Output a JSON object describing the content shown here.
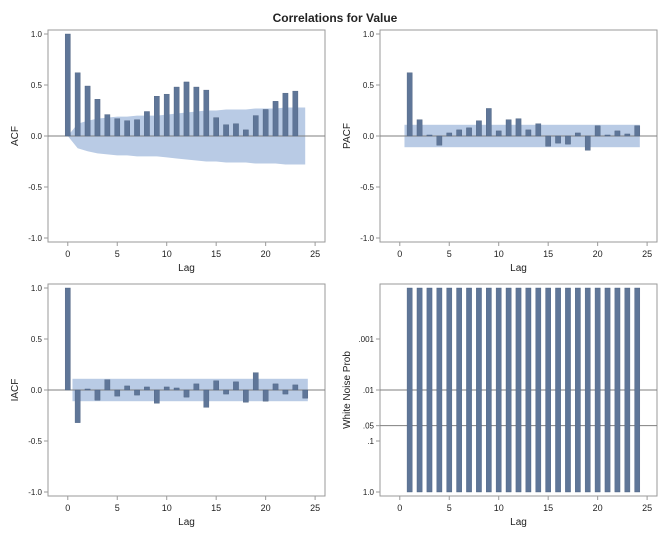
{
  "title": "Correlations for Value",
  "colors": {
    "bar": "#5f7698",
    "band": "#b9cbe5",
    "frame": "#9a9a9a",
    "zero": "#7f7f7f",
    "text": "#222222"
  },
  "chart_data": [
    {
      "type": "bar",
      "ylabel": "ACF",
      "xlabel": "Lag",
      "xlim": [
        -2,
        26
      ],
      "xticks": [
        "0",
        "5",
        "10",
        "15",
        "20",
        "25"
      ],
      "ylim": [
        -1.0,
        1.0
      ],
      "yticks": [
        "-1.0",
        "-0.5",
        "0.0",
        "0.5",
        "1.0"
      ],
      "band": "funnel",
      "lags": [
        0,
        1,
        2,
        3,
        4,
        5,
        6,
        7,
        8,
        9,
        10,
        11,
        12,
        13,
        14,
        15,
        16,
        17,
        18,
        19,
        20,
        21,
        22,
        23,
        24
      ],
      "values": [
        1.0,
        0.62,
        0.49,
        0.36,
        0.21,
        0.17,
        0.15,
        0.16,
        0.24,
        0.39,
        0.41,
        0.48,
        0.53,
        0.48,
        0.45,
        0.18,
        0.11,
        0.12,
        0.06,
        0.2,
        0.26,
        0.34,
        0.42,
        0.44,
        0.0
      ],
      "band_upper": [
        0.0,
        0.12,
        0.15,
        0.17,
        0.18,
        0.19,
        0.19,
        0.2,
        0.2,
        0.2,
        0.21,
        0.22,
        0.23,
        0.24,
        0.25,
        0.25,
        0.26,
        0.26,
        0.26,
        0.27,
        0.27,
        0.27,
        0.28,
        0.28,
        0.28
      ]
    },
    {
      "type": "bar",
      "ylabel": "PACF",
      "xlabel": "Lag",
      "xlim": [
        -2,
        26
      ],
      "xticks": [
        "0",
        "5",
        "10",
        "15",
        "20",
        "25"
      ],
      "ylim": [
        -1.0,
        1.0
      ],
      "yticks": [
        "-1.0",
        "-0.5",
        "0.0",
        "0.5",
        "1.0"
      ],
      "band": "constant",
      "band_level": 0.11,
      "lags": [
        1,
        2,
        3,
        4,
        5,
        6,
        7,
        8,
        9,
        10,
        11,
        12,
        13,
        14,
        15,
        16,
        17,
        18,
        19,
        20,
        21,
        22,
        23,
        24
      ],
      "values": [
        0.62,
        0.16,
        0.01,
        -0.09,
        0.03,
        0.06,
        0.08,
        0.15,
        0.27,
        0.05,
        0.16,
        0.17,
        0.06,
        0.12,
        -0.1,
        -0.07,
        -0.08,
        0.03,
        -0.14,
        0.1,
        0.01,
        0.05,
        0.02,
        0.1
      ]
    },
    {
      "type": "bar",
      "ylabel": "IACF",
      "xlabel": "Lag",
      "xlim": [
        -2,
        26
      ],
      "xticks": [
        "0",
        "5",
        "10",
        "15",
        "20",
        "25"
      ],
      "ylim": [
        -1.0,
        1.0
      ],
      "yticks": [
        "-1.0",
        "-0.5",
        "0.0",
        "0.5",
        "1.0"
      ],
      "band": "constant",
      "band_level": 0.11,
      "lags": [
        0,
        1,
        2,
        3,
        4,
        5,
        6,
        7,
        8,
        9,
        10,
        11,
        12,
        13,
        14,
        15,
        16,
        17,
        18,
        19,
        20,
        21,
        22,
        23,
        24
      ],
      "values": [
        1.0,
        -0.32,
        0.01,
        -0.1,
        0.1,
        -0.06,
        0.04,
        -0.05,
        0.03,
        -0.13,
        0.03,
        0.02,
        -0.07,
        0.06,
        -0.17,
        0.09,
        -0.04,
        0.08,
        -0.12,
        0.17,
        -0.11,
        0.06,
        -0.04,
        0.05,
        -0.08
      ]
    },
    {
      "type": "bar",
      "ylabel": "White Noise Prob",
      "xlabel": "Lag",
      "xlim": [
        -2,
        26
      ],
      "xticks": [
        "0",
        "5",
        "10",
        "15",
        "20",
        "25"
      ],
      "yscale": "log",
      "ylim_prob": [
        1.0,
        0.0001
      ],
      "yticks_prob": [
        ".001",
        ".01",
        ".05",
        ".1",
        "1.0"
      ],
      "reference_lines": [
        0.01,
        0.05
      ],
      "lags": [
        1,
        2,
        3,
        4,
        5,
        6,
        7,
        8,
        9,
        10,
        11,
        12,
        13,
        14,
        15,
        16,
        17,
        18,
        19,
        20,
        21,
        22,
        23,
        24
      ],
      "values": [
        0.0001,
        0.0001,
        0.0001,
        0.0001,
        0.0001,
        0.0001,
        0.0001,
        0.0001,
        0.0001,
        0.0001,
        0.0001,
        0.0001,
        0.0001,
        0.0001,
        0.0001,
        0.0001,
        0.0001,
        0.0001,
        0.0001,
        0.0001,
        0.0001,
        0.0001,
        0.0001,
        0.0001
      ]
    }
  ]
}
